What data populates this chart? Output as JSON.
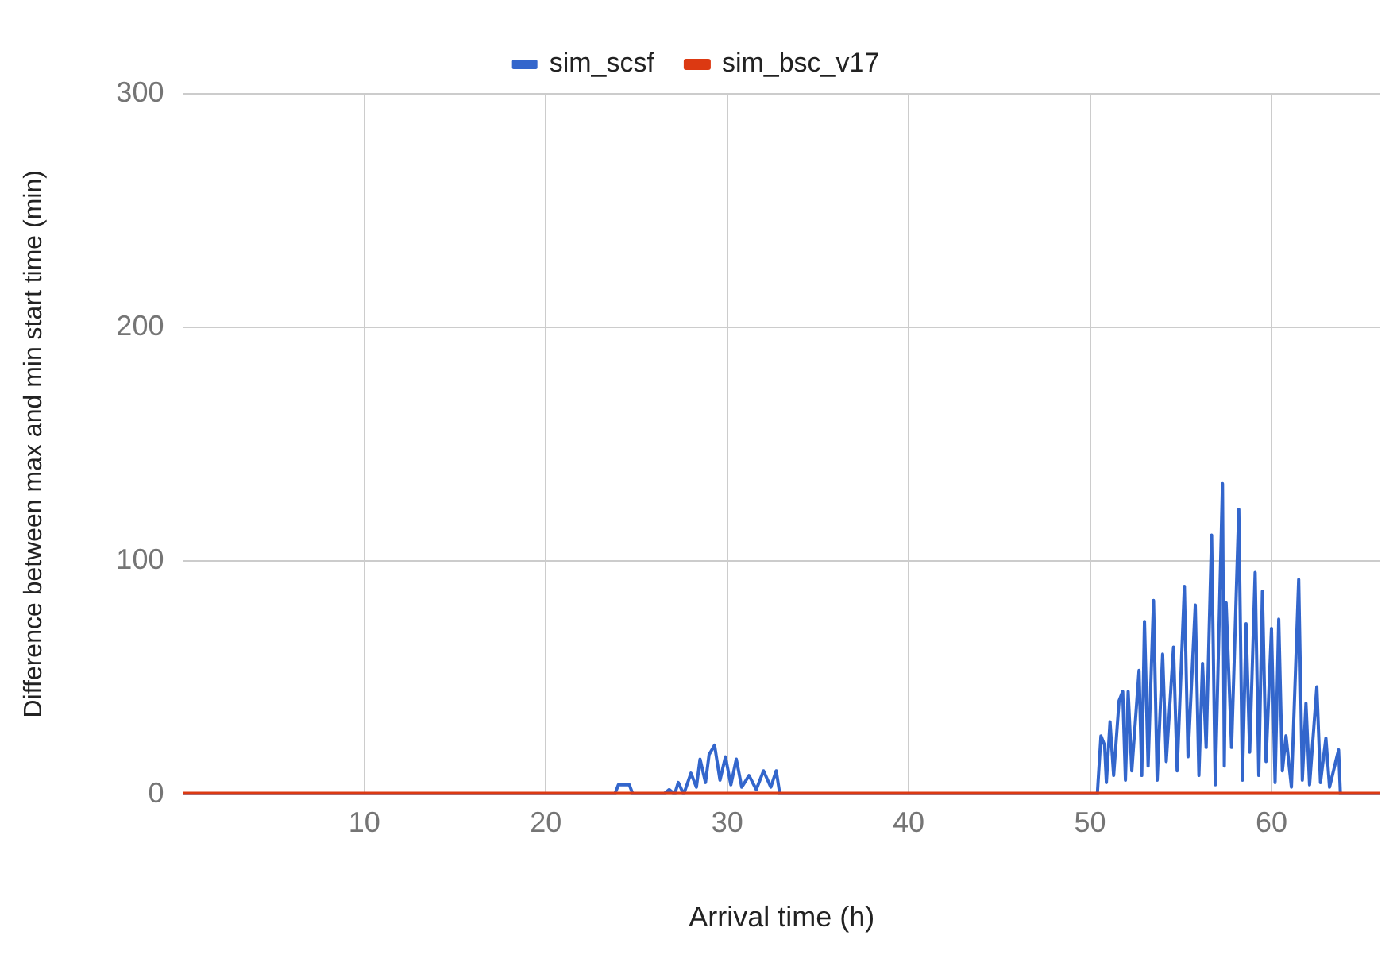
{
  "chart_data": {
    "type": "line",
    "xlabel": "Arrival time (h)",
    "ylabel": "Difference between max and min start time (min)",
    "xlim": [
      0,
      66
    ],
    "xticks": [
      10,
      20,
      30,
      40,
      50,
      60
    ],
    "ylim": [
      0,
      300
    ],
    "yticks": [
      0,
      100,
      200,
      300
    ],
    "grid": true,
    "legend": "top",
    "marker": "none",
    "series": [
      {
        "name": "sim_scsf",
        "color": "#3366cc",
        "x": [
          0,
          23.8,
          24.0,
          24.6,
          24.8,
          26.5,
          26.8,
          27.1,
          27.3,
          27.6,
          28.0,
          28.3,
          28.5,
          28.8,
          29.0,
          29.3,
          29.6,
          29.9,
          30.2,
          30.5,
          30.8,
          31.2,
          31.6,
          32.0,
          32.4,
          32.7,
          32.9,
          50.4,
          50.6,
          50.8,
          50.9,
          51.1,
          51.3,
          51.6,
          51.8,
          51.95,
          52.1,
          52.3,
          52.7,
          52.85,
          53.0,
          53.2,
          53.5,
          53.7,
          54.0,
          54.2,
          54.6,
          54.8,
          55.2,
          55.4,
          55.8,
          56.0,
          56.2,
          56.4,
          56.7,
          56.9,
          57.3,
          57.4,
          57.5,
          57.8,
          58.2,
          58.4,
          58.6,
          58.8,
          59.1,
          59.3,
          59.5,
          59.7,
          60.0,
          60.2,
          60.4,
          60.6,
          60.8,
          61.1,
          61.5,
          61.7,
          61.9,
          62.1,
          62.5,
          62.7,
          63.0,
          63.2,
          63.7,
          63.8,
          66
        ],
        "values": [
          0,
          0,
          4,
          4,
          0,
          0,
          2,
          0,
          5,
          0,
          9,
          3,
          15,
          5,
          17,
          21,
          6,
          16,
          4,
          15,
          3,
          8,
          2,
          10,
          3,
          10,
          0,
          0,
          25,
          21,
          5,
          31,
          8,
          40,
          44,
          6,
          44,
          10,
          53,
          8,
          74,
          12,
          83,
          6,
          60,
          14,
          63,
          10,
          89,
          16,
          81,
          8,
          56,
          20,
          111,
          4,
          133,
          12,
          82,
          20,
          122,
          6,
          73,
          18,
          95,
          8,
          87,
          14,
          71,
          5,
          75,
          10,
          25,
          3,
          92,
          6,
          39,
          4,
          46,
          5,
          24,
          3,
          19,
          0,
          0
        ]
      },
      {
        "name": "sim_bsc_v17",
        "color": "#dc3912",
        "x": [
          0,
          66
        ],
        "values": [
          0,
          0
        ]
      }
    ]
  }
}
